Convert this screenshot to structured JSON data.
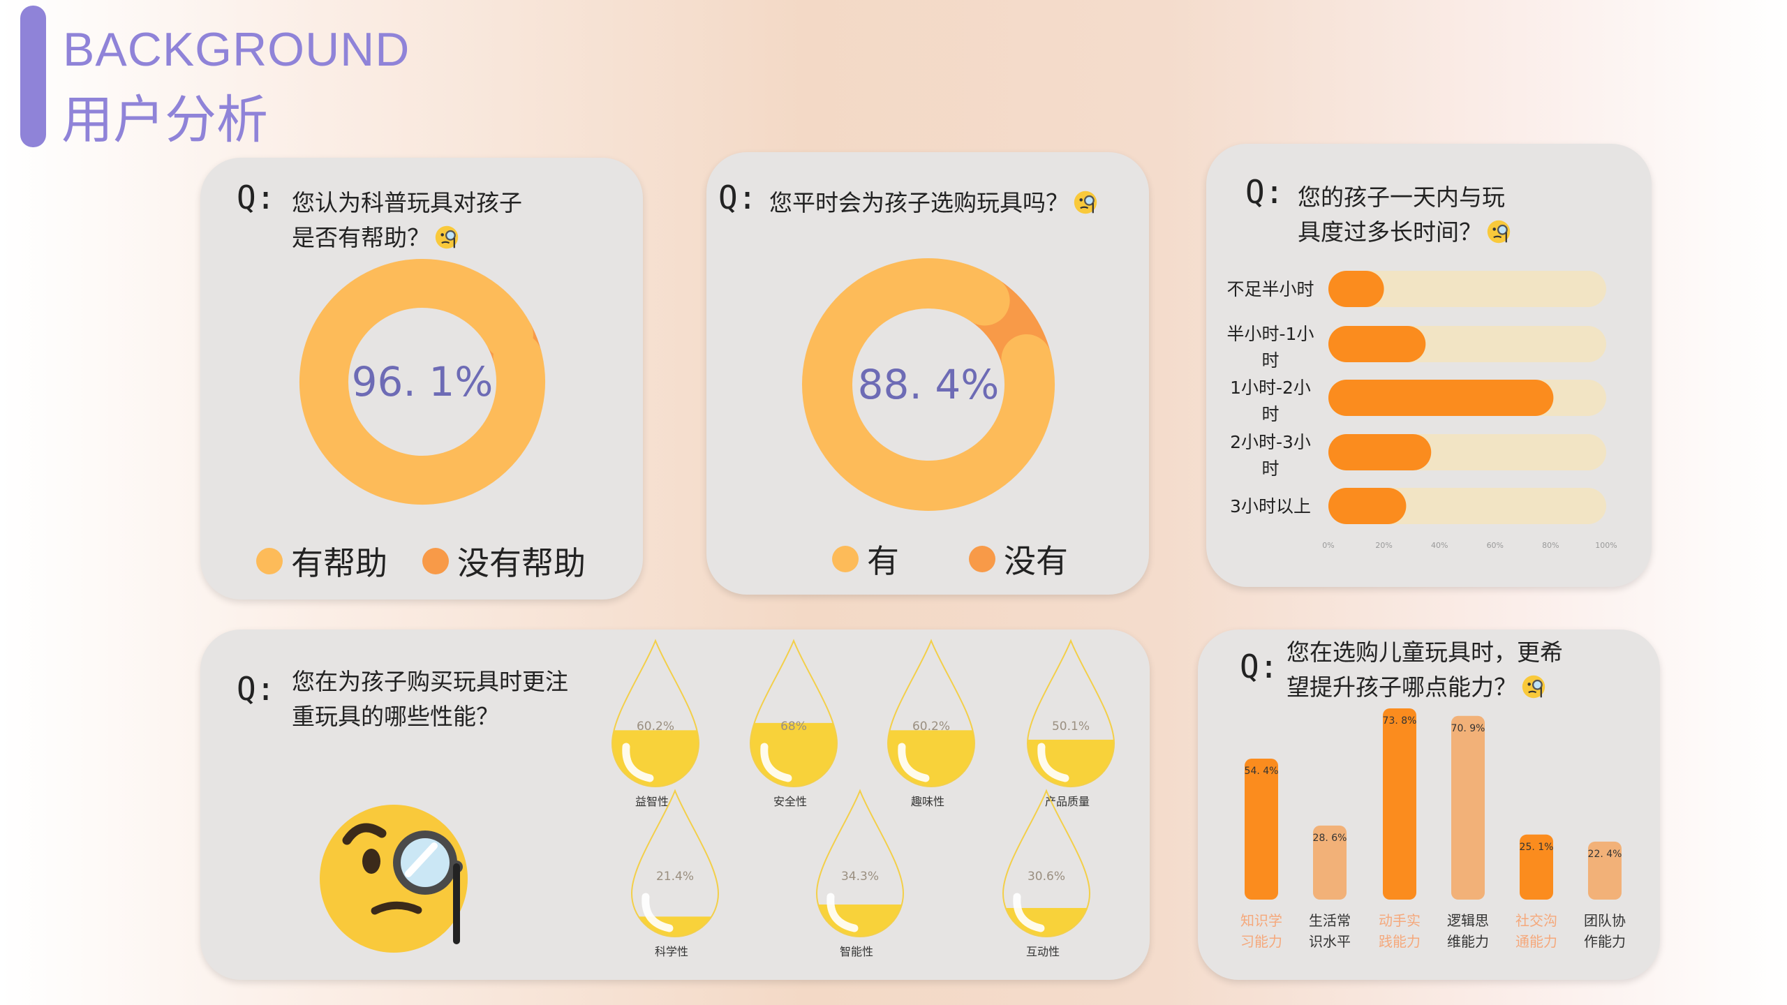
{
  "header": {
    "title_en": "BACKGROUND",
    "title_cn": "用户分析"
  },
  "q_prefix": "Q:",
  "card1": {
    "question_line1": "您认为科普玩具对孩子",
    "question_line2": "是否有帮助？",
    "legend": [
      {
        "label": "有帮助",
        "color": "#fdbb59"
      },
      {
        "label": "没有帮助",
        "color": "#f89a48"
      }
    ]
  },
  "card2": {
    "question_line1": "您平时会为孩子选购玩具吗？",
    "legend": [
      {
        "label": "有",
        "color": "#fdbb59"
      },
      {
        "label": "没有",
        "color": "#f89a48"
      }
    ]
  },
  "card3": {
    "question_line1": "您的孩子一天内与玩",
    "question_line2": "具度过多长时间？"
  },
  "card4": {
    "question_line1": "您在为孩子购买玩具时更注",
    "question_line2": "重玩具的哪些性能？"
  },
  "card5": {
    "question_line1": "您在选购儿童玩具时，更希",
    "question_line2": "望提升孩子哪点能力？"
  },
  "chart_data": [
    {
      "type": "pie",
      "subtype": "donut",
      "categories": [
        "有帮助",
        "没有帮助"
      ],
      "values": [
        96.1,
        3.9
      ],
      "center_label": "96. 1%",
      "colors": [
        "#fdbb59",
        "#f89a48"
      ]
    },
    {
      "type": "pie",
      "subtype": "donut",
      "categories": [
        "有",
        "没有"
      ],
      "values": [
        88.4,
        11.6
      ],
      "center_label": "88. 4%",
      "colors": [
        "#fdbb59",
        "#f89a48"
      ]
    },
    {
      "type": "bar",
      "orientation": "horizontal",
      "categories": [
        [
          "不足半小时"
        ],
        [
          "半小时-1小",
          "时"
        ],
        [
          "1小时-2小",
          "时"
        ],
        [
          "2小时-3小",
          "时"
        ],
        [
          "3小时以上"
        ]
      ],
      "values": [
        20,
        35,
        81,
        37,
        28
      ],
      "xlim": [
        0,
        100
      ],
      "xticks": [
        "0%",
        "20%",
        "40%",
        "60%",
        "80%",
        "100%"
      ],
      "bar_color": "#fb8c1e",
      "track_color": "#f2e4c4"
    },
    {
      "type": "bar",
      "subtype": "liquid-fill drops",
      "items": [
        {
          "label": "益智性",
          "value": 60.2,
          "text": "60.2%"
        },
        {
          "label": "安全性",
          "value": 68,
          "text": "68%"
        },
        {
          "label": "趣味性",
          "value": 60.2,
          "text": "60.2%"
        },
        {
          "label": "产品质量",
          "value": 50.1,
          "text": "50.1%"
        },
        {
          "label": "科学性",
          "value": 21.4,
          "text": "21.4%"
        },
        {
          "label": "智能性",
          "value": 34.3,
          "text": "34.3%"
        },
        {
          "label": "互动性",
          "value": 30.6,
          "text": "30.6%"
        }
      ],
      "fill_color": "#f8d23a"
    },
    {
      "type": "bar",
      "categories": [
        [
          "知识学",
          "习能力"
        ],
        [
          "生活常",
          "识水平"
        ],
        [
          "动手实",
          "践能力"
        ],
        [
          "逻辑思",
          "维能力"
        ],
        [
          "社交沟",
          "通能力"
        ],
        [
          "团队协",
          "作能力"
        ]
      ],
      "values": [
        54.4,
        28.6,
        73.8,
        70.9,
        25.1,
        22.4
      ],
      "data_labels": [
        "54. 4%",
        "28. 6%",
        "73. 8%",
        "70. 9%",
        "25. 1%",
        "22. 4%"
      ],
      "colors": [
        "#fb8c1e",
        "#f2b178",
        "#fb8c1e",
        "#f2b178",
        "#fb8c1e",
        "#f2b178"
      ],
      "label_colors": [
        "#f5a87b",
        "#333333",
        "#f5a87b",
        "#333333",
        "#f5a87b",
        "#333333"
      ]
    }
  ]
}
